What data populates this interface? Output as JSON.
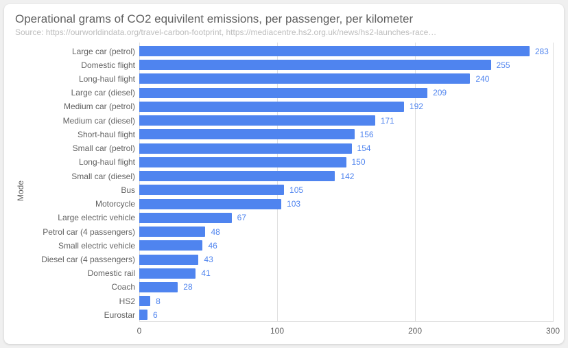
{
  "chart": {
    "type": "bar-horizontal",
    "title": "Operational grams of CO2 equivilent emissions, per passenger, per kilometer",
    "subtitle": "Source: https://ourworldindata.org/travel-carbon-footprint, https://mediacentre.hs2.org.uk/news/hs2-launches-race…",
    "y_axis_title": "Mode",
    "background_color": "#ffffff",
    "grid_color": "#e0e0e0",
    "title_color": "#616161",
    "subtitle_color": "#bdbdbd",
    "label_color": "#616161",
    "bar_color": "#4f84ef",
    "value_color": "#4f84ef",
    "title_fontsize": 17,
    "subtitle_fontsize": 12,
    "label_fontsize": 12,
    "value_fontsize": 12,
    "xlim": [
      0,
      300
    ],
    "xticks": [
      0,
      100,
      200,
      300
    ],
    "bar_height_ratio": 0.74,
    "categories": [
      "Large car (petrol)",
      "Domestic flight",
      "Long-haul flight",
      "Large car (diesel)",
      "Medium car (petrol)",
      "Medium car (diesel)",
      "Short-haul flight",
      "Small car (petrol)",
      "Long-haul flight",
      "Small car (diesel)",
      "Bus",
      "Motorcycle",
      "Large electric vehicle",
      "Petrol car (4 passengers)",
      "Small electric vehicle",
      "Diesel car (4 passengers)",
      "Domestic rail",
      "Coach",
      "HS2",
      "Eurostar"
    ],
    "values": [
      283,
      255,
      240,
      209,
      192,
      171,
      156,
      154,
      150,
      142,
      105,
      103,
      67,
      48,
      46,
      43,
      41,
      28,
      8,
      6
    ]
  }
}
